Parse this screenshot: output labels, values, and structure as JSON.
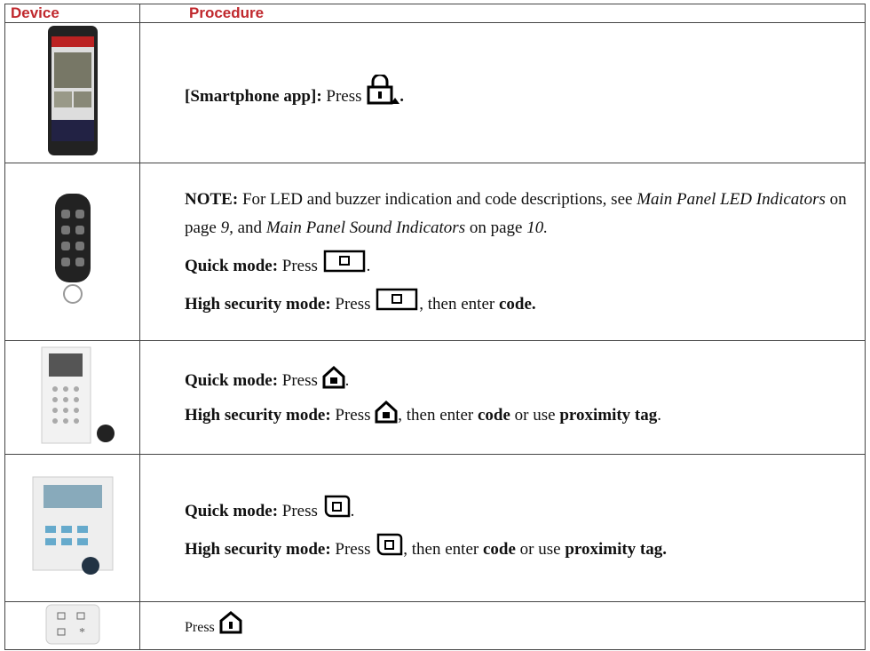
{
  "header": [
    "Device",
    "Procedure"
  ],
  "rows": [
    {
      "paragraphs": [
        [
          "[Smartphone app]:",
          "Press",
          "."
        ]
      ]
    },
    {
      "paragraphs": [
        [
          "NOTE:",
          "For LED and buzzer indication and code descriptions, see",
          "Main Panel LED Indicators",
          "on page",
          "9,",
          "and",
          "Main Panel Sound Indicators",
          "on page",
          "10."
        ],
        [
          "Quick mode:",
          "Press",
          "."
        ],
        [
          "High security mode:",
          "Press",
          ", then enter",
          "code."
        ]
      ]
    },
    {
      "paragraphs": [
        [
          "Quick mode:",
          "Press",
          "."
        ],
        [
          "High security mode:",
          "Press",
          ", then enter",
          "code",
          "or use",
          "proximity tag",
          "."
        ]
      ]
    },
    {
      "paragraphs": [
        [
          "Quick mode:",
          "Press",
          "."
        ],
        [
          "High security mode:",
          "Press",
          ", then enter",
          "code",
          "or use",
          "proximity tag."
        ]
      ]
    },
    {
      "paragraphs": [
        [
          "Press"
        ]
      ]
    }
  ]
}
